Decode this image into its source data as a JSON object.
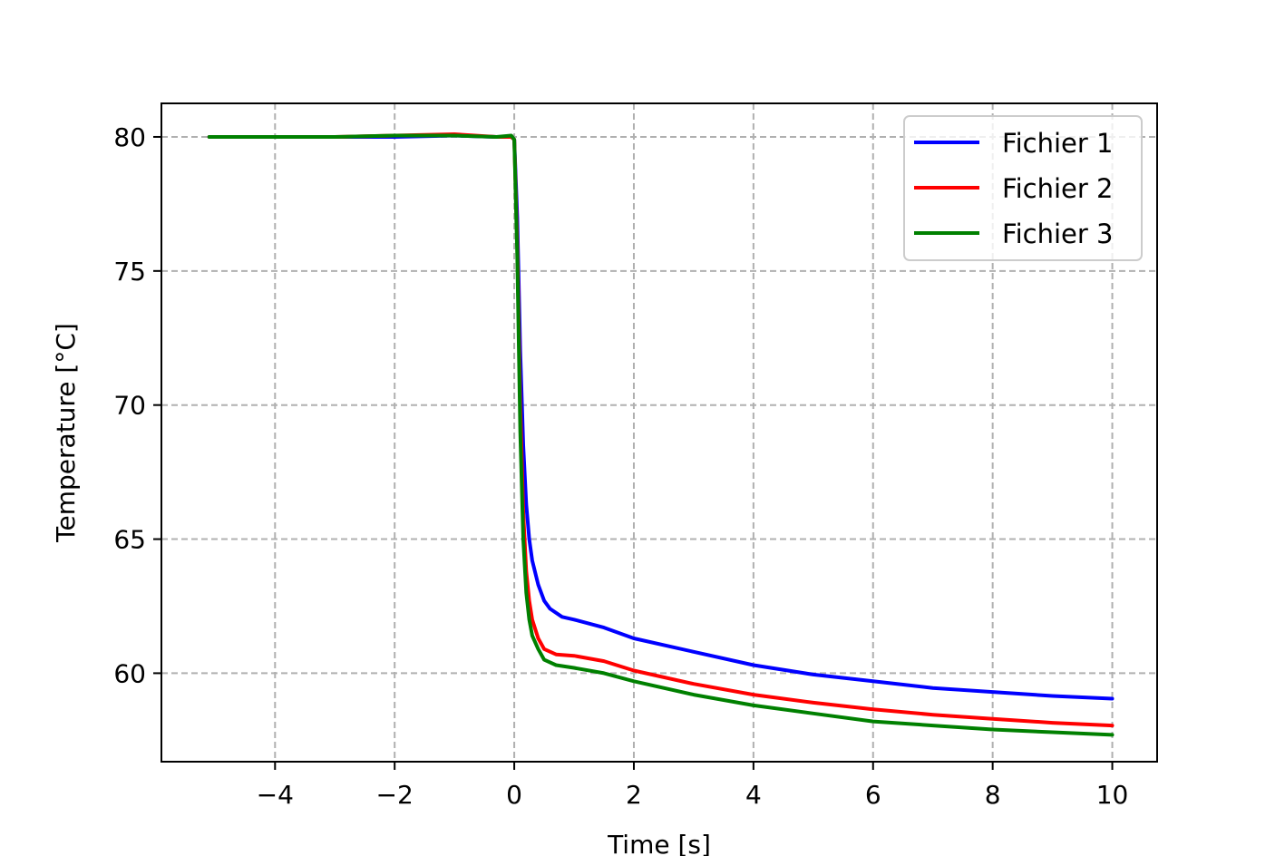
{
  "chart_data": {
    "type": "line",
    "title": "",
    "xlabel": "Time [s]",
    "ylabel": "Temperature [°C]",
    "xlim": [
      -5.9,
      10.75
    ],
    "ylim": [
      56.7,
      81.25
    ],
    "x_ticks": [
      -4,
      -2,
      0,
      2,
      4,
      6,
      8,
      10
    ],
    "x_tick_labels": [
      "−4",
      "−2",
      "0",
      "2",
      "4",
      "6",
      "8",
      "10"
    ],
    "y_ticks": [
      60,
      65,
      70,
      75,
      80
    ],
    "y_tick_labels": [
      "60",
      "65",
      "70",
      "75",
      "80"
    ],
    "grid": true,
    "legend_position": "top-right",
    "series": [
      {
        "name": "Fichier 1",
        "color": "#0000ff",
        "points": [
          [
            -5.1,
            80.0
          ],
          [
            -4.0,
            80.0
          ],
          [
            -3.0,
            80.0
          ],
          [
            -2.0,
            80.0
          ],
          [
            -1.0,
            80.05
          ],
          [
            -0.3,
            80.0
          ],
          [
            -0.05,
            80.0
          ],
          [
            0.0,
            79.9
          ],
          [
            0.05,
            77.0
          ],
          [
            0.1,
            72.0
          ],
          [
            0.15,
            68.5
          ],
          [
            0.2,
            66.3
          ],
          [
            0.25,
            65.0
          ],
          [
            0.3,
            64.2
          ],
          [
            0.4,
            63.3
          ],
          [
            0.5,
            62.7
          ],
          [
            0.6,
            62.4
          ],
          [
            0.8,
            62.1
          ],
          [
            1.0,
            62.0
          ],
          [
            1.5,
            61.7
          ],
          [
            2.0,
            61.3
          ],
          [
            3.0,
            60.8
          ],
          [
            4.0,
            60.3
          ],
          [
            5.0,
            59.95
          ],
          [
            6.0,
            59.7
          ],
          [
            7.0,
            59.45
          ],
          [
            8.0,
            59.3
          ],
          [
            9.0,
            59.15
          ],
          [
            10.0,
            59.05
          ]
        ]
      },
      {
        "name": "Fichier 2",
        "color": "#ff0000",
        "points": [
          [
            -5.1,
            80.0
          ],
          [
            -4.0,
            80.0
          ],
          [
            -3.0,
            80.0
          ],
          [
            -2.0,
            80.05
          ],
          [
            -1.0,
            80.1
          ],
          [
            -0.3,
            80.0
          ],
          [
            -0.05,
            80.0
          ],
          [
            0.0,
            79.9
          ],
          [
            0.05,
            76.0
          ],
          [
            0.1,
            70.0
          ],
          [
            0.15,
            66.0
          ],
          [
            0.2,
            63.8
          ],
          [
            0.25,
            62.7
          ],
          [
            0.3,
            62.0
          ],
          [
            0.4,
            61.3
          ],
          [
            0.5,
            60.9
          ],
          [
            0.7,
            60.7
          ],
          [
            1.0,
            60.65
          ],
          [
            1.5,
            60.45
          ],
          [
            2.0,
            60.1
          ],
          [
            3.0,
            59.6
          ],
          [
            4.0,
            59.2
          ],
          [
            5.0,
            58.9
          ],
          [
            6.0,
            58.65
          ],
          [
            7.0,
            58.45
          ],
          [
            8.0,
            58.3
          ],
          [
            9.0,
            58.15
          ],
          [
            10.0,
            58.05
          ]
        ]
      },
      {
        "name": "Fichier 3",
        "color": "#008000",
        "points": [
          [
            -5.1,
            80.0
          ],
          [
            -4.0,
            80.0
          ],
          [
            -3.0,
            80.0
          ],
          [
            -2.0,
            80.05
          ],
          [
            -1.0,
            80.05
          ],
          [
            -0.3,
            80.0
          ],
          [
            -0.05,
            80.05
          ],
          [
            0.0,
            79.9
          ],
          [
            0.05,
            75.5
          ],
          [
            0.1,
            69.0
          ],
          [
            0.15,
            65.0
          ],
          [
            0.2,
            63.0
          ],
          [
            0.25,
            62.0
          ],
          [
            0.3,
            61.4
          ],
          [
            0.4,
            60.9
          ],
          [
            0.5,
            60.5
          ],
          [
            0.7,
            60.3
          ],
          [
            1.0,
            60.2
          ],
          [
            1.5,
            60.0
          ],
          [
            2.0,
            59.7
          ],
          [
            3.0,
            59.2
          ],
          [
            4.0,
            58.8
          ],
          [
            5.0,
            58.5
          ],
          [
            6.0,
            58.2
          ],
          [
            7.0,
            58.05
          ],
          [
            8.0,
            57.9
          ],
          [
            9.0,
            57.8
          ],
          [
            10.0,
            57.7
          ]
        ]
      }
    ]
  }
}
